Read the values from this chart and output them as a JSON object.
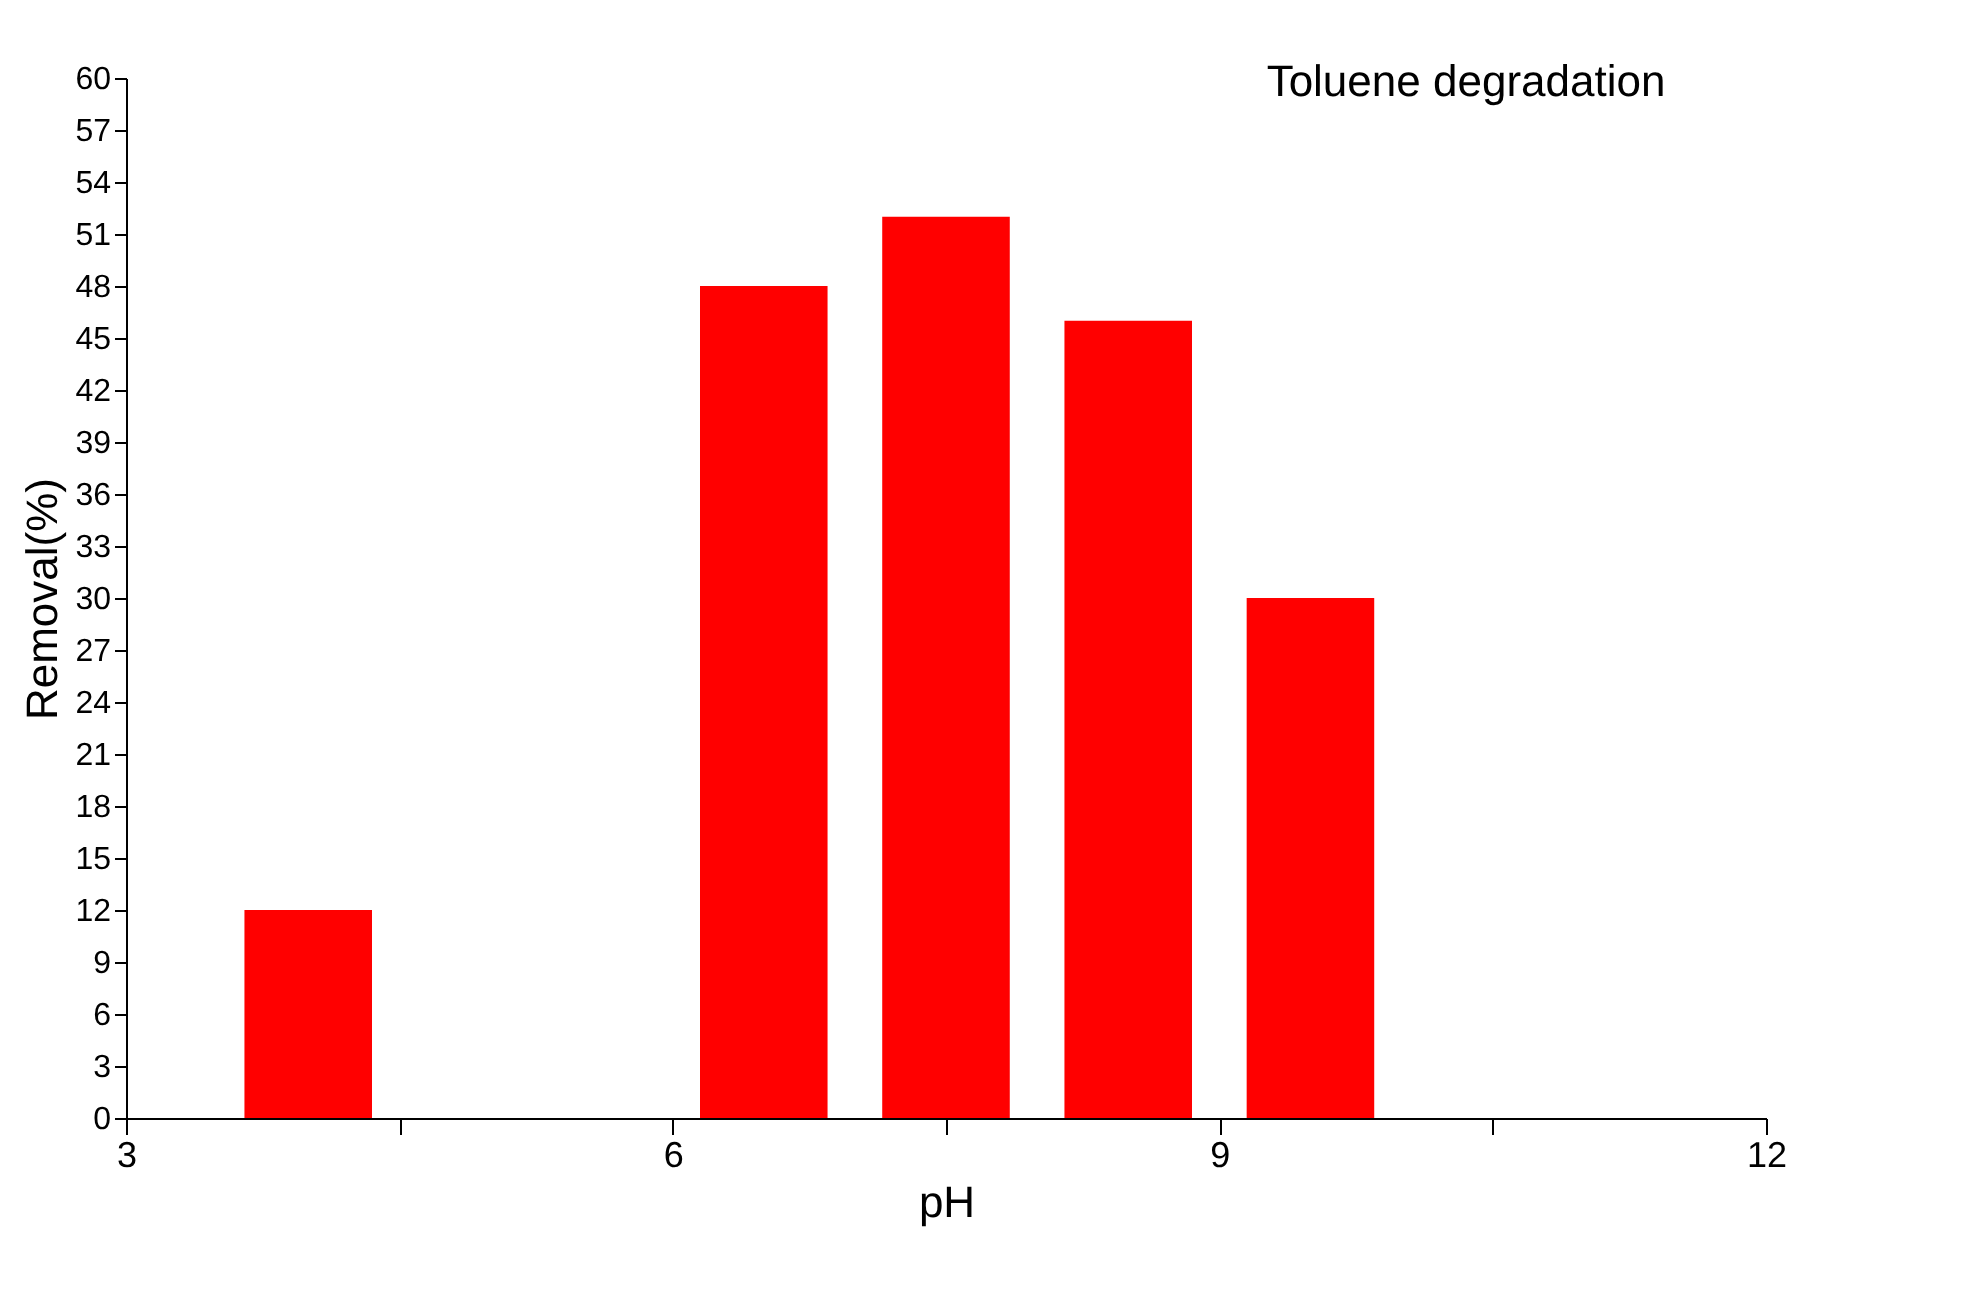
{
  "chart_data": {
    "type": "bar",
    "xlabel": "pH",
    "ylabel": "Removal(%)",
    "x": [
      4,
      6.5,
      7.5,
      8.5,
      9.5
    ],
    "values": [
      12,
      48,
      52,
      46,
      30
    ],
    "color": "#ff0000",
    "xlim": [
      3,
      12
    ],
    "xticks": [
      3,
      {
        "value": 4.5,
        "label": null
      },
      6,
      {
        "value": 7.5,
        "label": null
      },
      9,
      {
        "value": 10.5,
        "label": null
      },
      12
    ],
    "ylim": [
      0,
      60
    ],
    "yticks": [
      0,
      3,
      6,
      9,
      12,
      15,
      18,
      21,
      24,
      27,
      30,
      33,
      36,
      39,
      42,
      45,
      48,
      51,
      54,
      57,
      60
    ],
    "annotations": [
      "Toluene degradation"
    ],
    "grid": false
  }
}
